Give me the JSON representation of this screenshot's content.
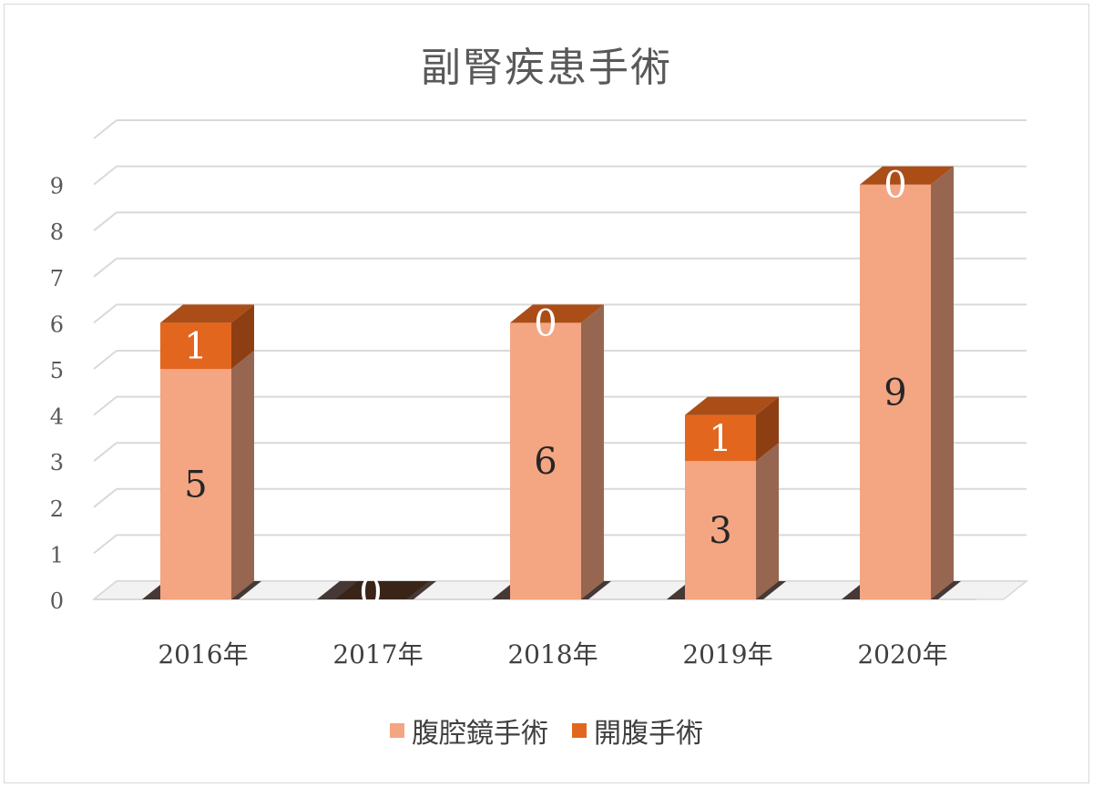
{
  "chart_data": {
    "type": "bar",
    "stacked": true,
    "three_d": true,
    "title": "副腎疾患手術",
    "categories": [
      "2016年",
      "2017年",
      "2018年",
      "2019年",
      "2020年"
    ],
    "series": [
      {
        "name": "腹腔鏡手術",
        "values": [
          5,
          0,
          6,
          3,
          9
        ],
        "color": "#f4a582"
      },
      {
        "name": "開腹手術",
        "values": [
          1,
          0,
          0,
          1,
          0
        ],
        "color": "#e3661f"
      }
    ],
    "ylim": [
      0,
      9
    ],
    "yticks": [
      0,
      1,
      2,
      3,
      4,
      5,
      6,
      7,
      8,
      9
    ],
    "grid": true,
    "legend": "bottom"
  }
}
